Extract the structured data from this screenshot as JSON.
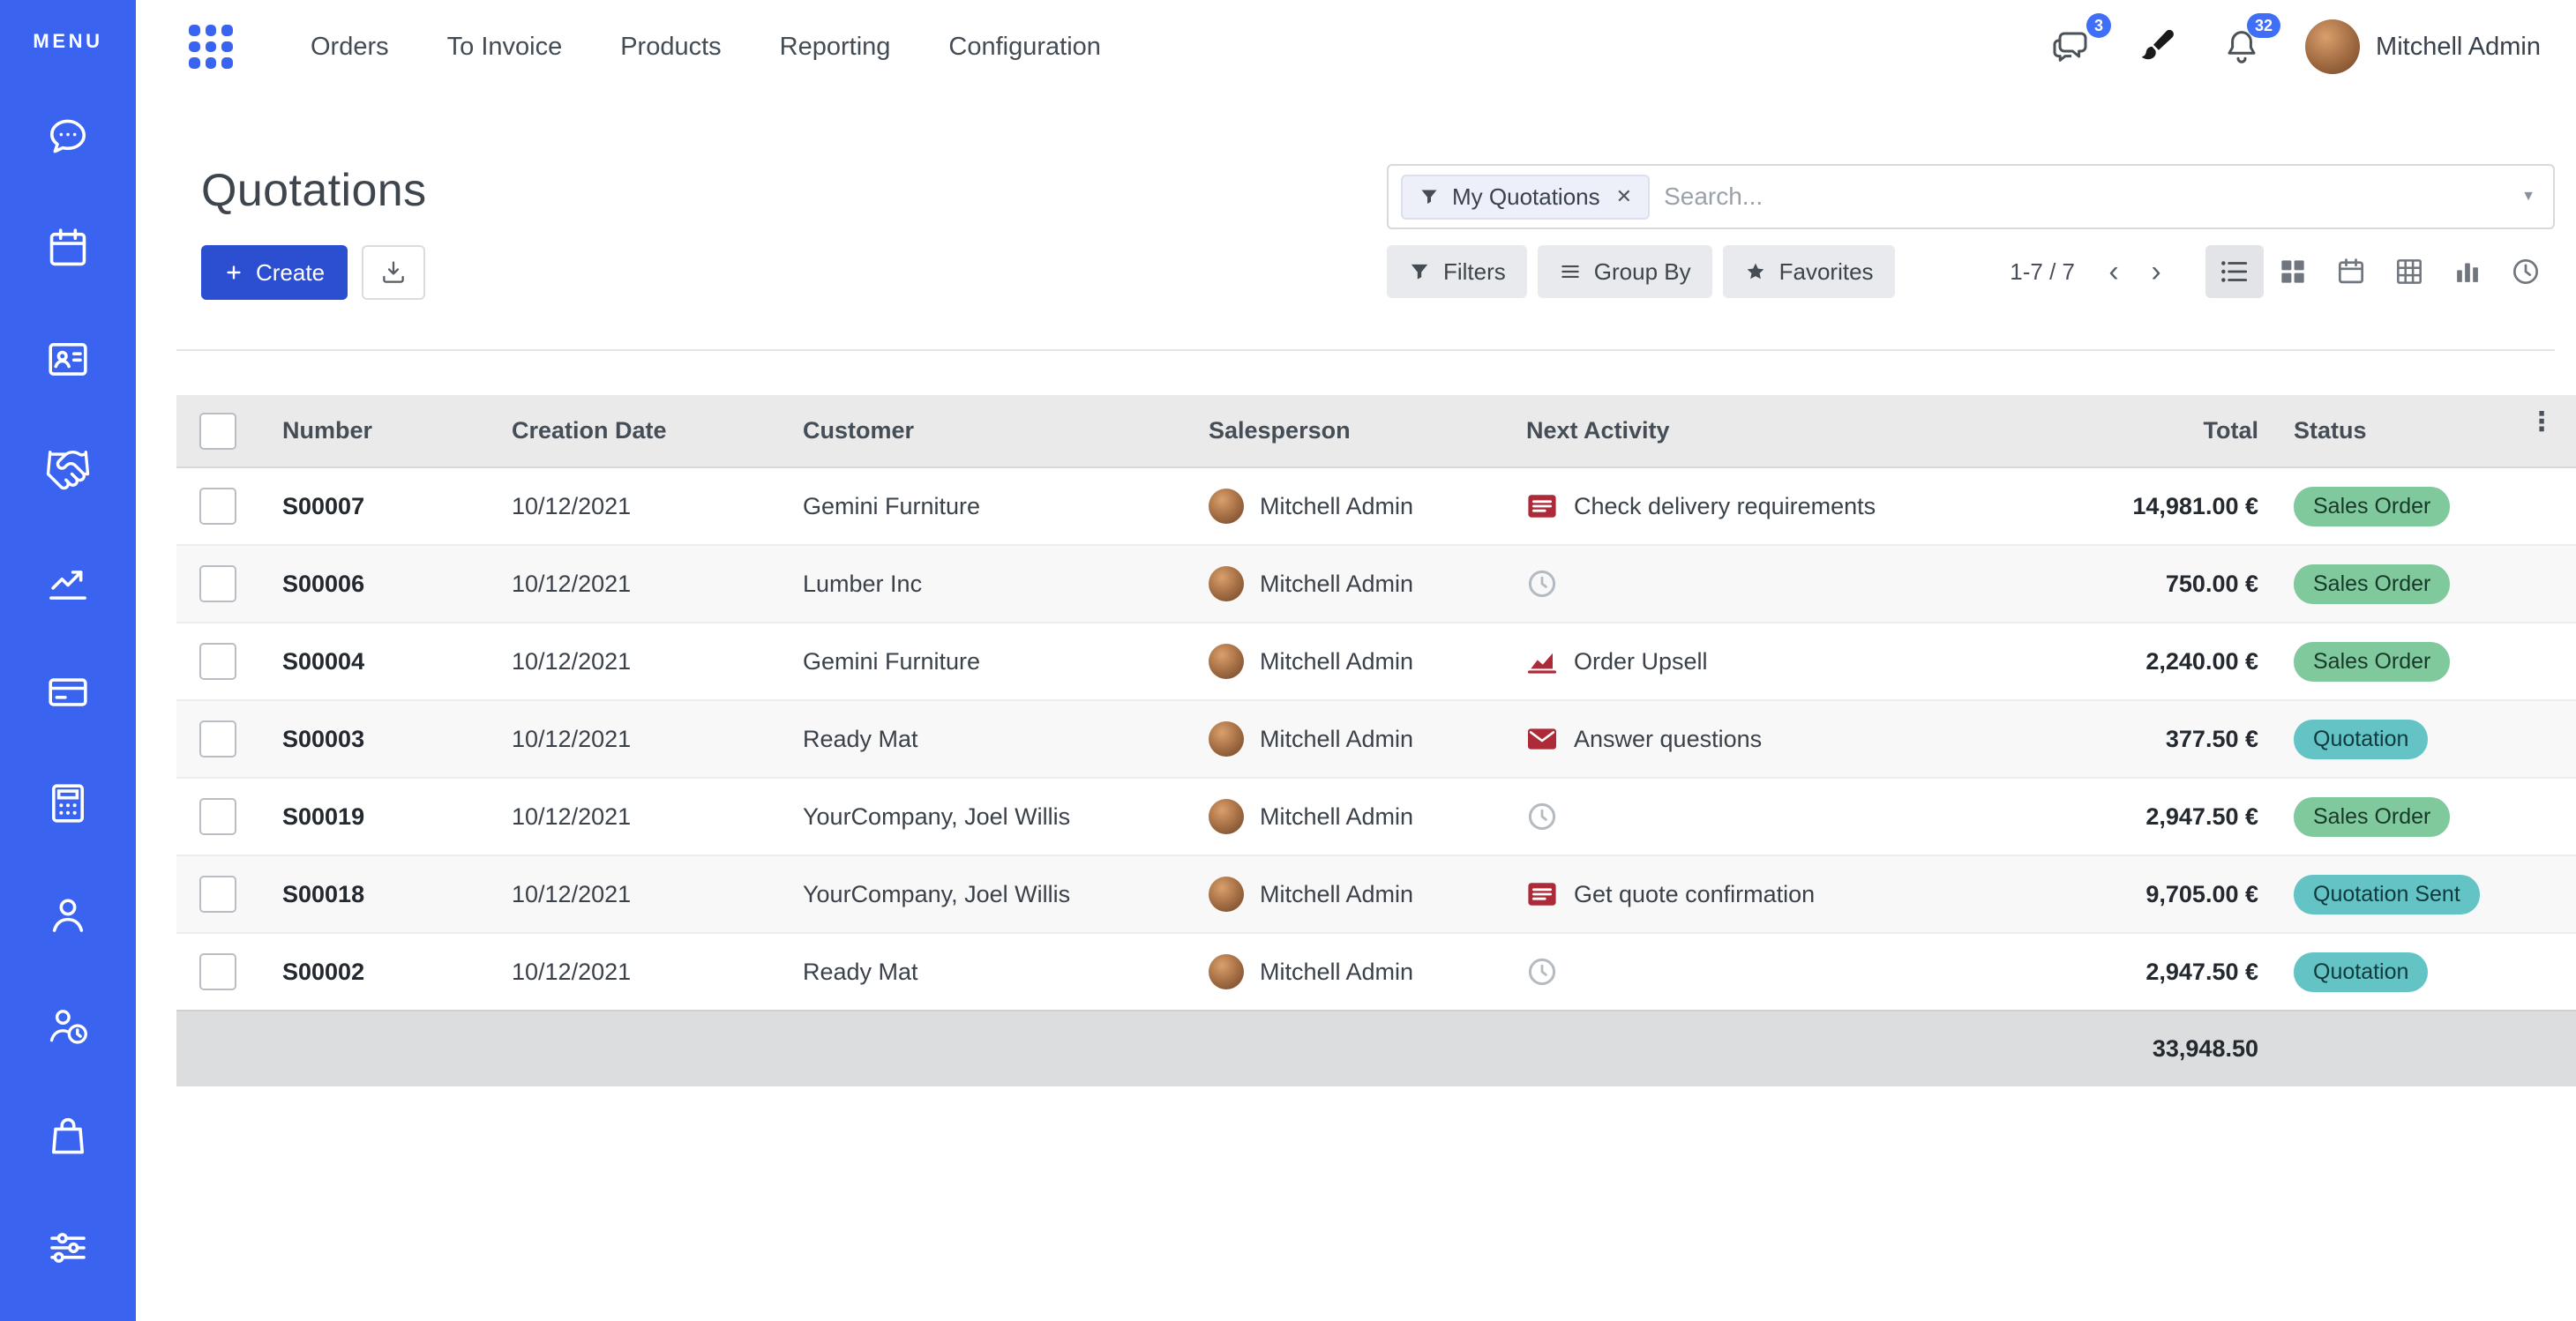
{
  "colors": {
    "sidebar": "#3a63ef",
    "primary": "#2b4fd0",
    "topbar_badge": "#3f6ff7",
    "badge_success_bg": "#7fc99c",
    "badge_success_text": "#18392a",
    "badge_info_bg": "#63c3c5",
    "badge_info_text": "#103a3c",
    "activity_danger": "#ad2b38",
    "activity_muted": "#b4bac1"
  },
  "sidebar": {
    "menu_label": "MENU",
    "icons": [
      "discuss-icon",
      "calendar-icon",
      "contacts-icon",
      "crm-icon",
      "sales-icon",
      "pos-icon",
      "accounting-icon",
      "employees-icon",
      "attendance-icon",
      "purchase-icon",
      "settings-icon"
    ]
  },
  "topbar": {
    "nav": [
      "Orders",
      "To Invoice",
      "Products",
      "Reporting",
      "Configuration"
    ],
    "messages_badge": "3",
    "notifications_badge": "32",
    "user_name": "Mitchell Admin"
  },
  "page": {
    "title": "Quotations",
    "create_label": "Create",
    "search": {
      "facet_label": "My Quotations",
      "placeholder": "Search..."
    },
    "controls": {
      "filters": "Filters",
      "group_by": "Group By",
      "favorites": "Favorites",
      "pager": "1-7 / 7"
    }
  },
  "table": {
    "columns": [
      "Number",
      "Creation Date",
      "Customer",
      "Salesperson",
      "Next Activity",
      "Total",
      "Status"
    ],
    "rows": [
      {
        "number": "S00007",
        "creation_date": "10/12/2021",
        "customer": "Gemini Furniture",
        "salesperson": "Mitchell Admin",
        "activity_icon": "activity-tasks-icon",
        "activity_label": "Check delivery requirements",
        "total": "14,981.00 €",
        "status": "Sales Order",
        "status_type": "success"
      },
      {
        "number": "S00006",
        "creation_date": "10/12/2021",
        "customer": "Lumber Inc",
        "salesperson": "Mitchell Admin",
        "activity_icon": "activity-clock-icon",
        "activity_label": "",
        "total": "750.00 €",
        "status": "Sales Order",
        "status_type": "success"
      },
      {
        "number": "S00004",
        "creation_date": "10/12/2021",
        "customer": "Gemini Furniture",
        "salesperson": "Mitchell Admin",
        "activity_icon": "activity-chart-icon",
        "activity_label": "Order Upsell",
        "total": "2,240.00 €",
        "status": "Sales Order",
        "status_type": "success"
      },
      {
        "number": "S00003",
        "creation_date": "10/12/2021",
        "customer": "Ready Mat",
        "salesperson": "Mitchell Admin",
        "activity_icon": "activity-mail-icon",
        "activity_label": "Answer questions",
        "total": "377.50 €",
        "status": "Quotation",
        "status_type": "info"
      },
      {
        "number": "S00019",
        "creation_date": "10/12/2021",
        "customer": "YourCompany, Joel Willis",
        "salesperson": "Mitchell Admin",
        "activity_icon": "activity-clock-icon",
        "activity_label": "",
        "total": "2,947.50 €",
        "status": "Sales Order",
        "status_type": "success"
      },
      {
        "number": "S00018",
        "creation_date": "10/12/2021",
        "customer": "YourCompany, Joel Willis",
        "salesperson": "Mitchell Admin",
        "activity_icon": "activity-tasks-icon",
        "activity_label": "Get quote confirmation",
        "total": "9,705.00 €",
        "status": "Quotation Sent",
        "status_type": "info"
      },
      {
        "number": "S00002",
        "creation_date": "10/12/2021",
        "customer": "Ready Mat",
        "salesperson": "Mitchell Admin",
        "activity_icon": "activity-clock-icon",
        "activity_label": "",
        "total": "2,947.50 €",
        "status": "Quotation",
        "status_type": "info"
      }
    ],
    "footer_total": "33,948.50"
  }
}
